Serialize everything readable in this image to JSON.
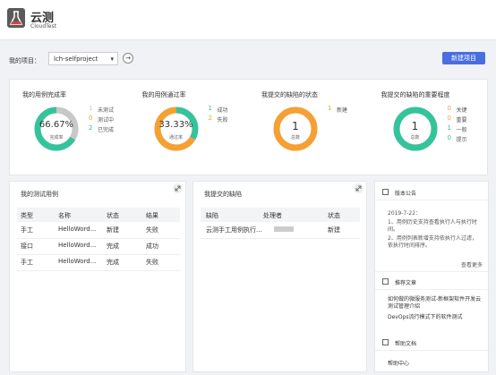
{
  "header": {
    "title": "云测",
    "subtitle": "CloudTest"
  },
  "toolbar": {
    "label": "我的项目：",
    "project": "lch-selfproject",
    "new_button": "新建项目"
  },
  "stats": [
    {
      "title": "我的用例完成率",
      "center_value": "66.67%",
      "center_label": "完成率",
      "items": [
        {
          "count": 1,
          "label": "未测试",
          "color": "#c8c8c8"
        },
        {
          "count": 0,
          "label": "测试中",
          "color": "#f5a033"
        },
        {
          "count": 2,
          "label": "已完成",
          "color": "#35c39b"
        }
      ]
    },
    {
      "title": "我的用例通过率",
      "center_value": "33.33%",
      "center_label": "通过率",
      "items": [
        {
          "count": 1,
          "label": "成功",
          "color": "#35c39b"
        },
        {
          "count": 2,
          "label": "失败",
          "color": "#f5a033"
        }
      ]
    },
    {
      "title": "我提交的缺陷的状态",
      "center_value": 1,
      "center_label": "总数",
      "items": [
        {
          "count": 1,
          "label": "新建",
          "color": "#f5a033"
        }
      ]
    },
    {
      "title": "我提交的缺陷的重要程度",
      "center_value": 1,
      "center_label": "总数",
      "items": [
        {
          "count": 0,
          "label": "关键",
          "color": "#f5a033"
        },
        {
          "count": 0,
          "label": "重要",
          "color": "#f5a033"
        },
        {
          "count": 1,
          "label": "一般",
          "color": "#35c39b"
        },
        {
          "count": 0,
          "label": "提示",
          "color": "#35c39b"
        }
      ]
    }
  ],
  "test_cases": {
    "title": "我的测试用例",
    "columns": [
      "类型",
      "名称",
      "状态",
      "结果"
    ],
    "rows": [
      [
        "手工",
        "HelloWord...",
        "新建",
        "失败"
      ],
      [
        "接口",
        "HelloWord...",
        "完成",
        "成功"
      ],
      [
        "手工",
        "HelloWord...",
        "完成",
        "失败"
      ]
    ]
  },
  "defects": {
    "title": "我提交的缺陷",
    "columns": [
      "缺陷",
      "处理者",
      "状态"
    ],
    "rows": [
      {
        "defect": "云测手工用例执行...",
        "status": "新建"
      }
    ]
  },
  "sidebar": {
    "announcement": {
      "title": "版本公告",
      "date": "2019-7-22：",
      "lines": [
        "1、用例历史支持查看执行人与执行时间。",
        "2、用例列表新增支持依执行人过滤，依执行时间排序。"
      ],
      "more": "查看更多"
    },
    "articles": {
      "title": "推荐文章",
      "items": [
        "如何做的微服务测试-新框架软件开发云测试管理介绍",
        "DevOps流行模式下的软件测试"
      ]
    },
    "help": {
      "title": "帮助文档",
      "items": [
        "帮助中心"
      ]
    }
  }
}
